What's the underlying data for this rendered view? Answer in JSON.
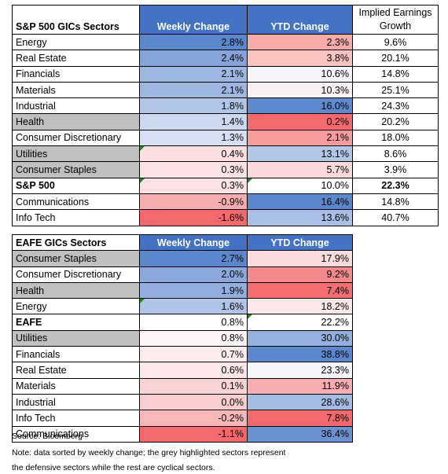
{
  "table1": {
    "headers": {
      "sector": "S&P 500 GICs Sectors",
      "weekly": "Weekly Change",
      "ytd": "YTD Change",
      "earnings_line1": "Implied Earnings",
      "earnings_line2": "Growth"
    },
    "rows": [
      {
        "sector": "Energy",
        "weekly": "2.8%",
        "ytd": "2.3%",
        "earnings": "9.6%",
        "weekly_color": "#5b87cd",
        "ytd_color": "#f8aaa9",
        "defensive": false,
        "bold": false,
        "flag_weekly": false,
        "flag_ytd": false
      },
      {
        "sector": "Real Estate",
        "weekly": "2.4%",
        "ytd": "3.8%",
        "earnings": "20.1%",
        "weekly_color": "#85a4da",
        "ytd_color": "#fbc2c2",
        "defensive": false,
        "bold": false,
        "flag_weekly": false,
        "flag_ytd": false
      },
      {
        "sector": "Financials",
        "weekly": "2.1%",
        "ytd": "10.6%",
        "earnings": "14.8%",
        "weekly_color": "#9db7e1",
        "ytd_color": "#f3f5fb",
        "defensive": false,
        "bold": false,
        "flag_weekly": false,
        "flag_ytd": false
      },
      {
        "sector": "Materials",
        "weekly": "2.1%",
        "ytd": "10.3%",
        "earnings": "25.1%",
        "weekly_color": "#9db7e1",
        "ytd_color": "#fbf1f3",
        "defensive": false,
        "bold": false,
        "flag_weekly": false,
        "flag_ytd": false
      },
      {
        "sector": "Industrial",
        "weekly": "1.8%",
        "ytd": "16.0%",
        "earnings": "24.3%",
        "weekly_color": "#b1c5e7",
        "ytd_color": "#5f89cf",
        "defensive": false,
        "bold": false,
        "flag_weekly": false,
        "flag_ytd": false
      },
      {
        "sector": "Health",
        "weekly": "1.4%",
        "ytd": "0.2%",
        "earnings": "20.2%",
        "weekly_color": "#cdd9f0",
        "ytd_color": "#f4696b",
        "defensive": true,
        "bold": false,
        "flag_weekly": false,
        "flag_ytd": false
      },
      {
        "sector": "Consumer Discretionary",
        "weekly": "1.3%",
        "ytd": "2.1%",
        "earnings": "18.0%",
        "weekly_color": "#d6e0f2",
        "ytd_color": "#f69c9d",
        "defensive": false,
        "bold": false,
        "flag_weekly": false,
        "flag_ytd": false
      },
      {
        "sector": "Utilities",
        "weekly": "0.4%",
        "ytd": "13.1%",
        "earnings": "8.6%",
        "weekly_color": "#fbdfe1",
        "ytd_color": "#b2c6e8",
        "defensive": true,
        "bold": false,
        "flag_weekly": true,
        "flag_ytd": false
      },
      {
        "sector": "Consumer Staples",
        "weekly": "0.3%",
        "ytd": "5.7%",
        "earnings": "3.9%",
        "weekly_color": "#fbe3e5",
        "ytd_color": "#fad9db",
        "defensive": true,
        "bold": false,
        "flag_weekly": false,
        "flag_ytd": false
      },
      {
        "sector": "S&P 500",
        "weekly": "0.3%",
        "ytd": "10.0%",
        "earnings": "22.3%",
        "weekly_color": "#fbe3e5",
        "ytd_color": "#ffffff",
        "defensive": false,
        "bold": true,
        "flag_weekly": true,
        "flag_ytd": true
      },
      {
        "sector": "Communications",
        "weekly": "-0.9%",
        "ytd": "16.4%",
        "earnings": "14.8%",
        "weekly_color": "#f8aeb0",
        "ytd_color": "#5b87cd",
        "defensive": false,
        "bold": false,
        "flag_weekly": false,
        "flag_ytd": false
      },
      {
        "sector": "Info Tech",
        "weekly": "-1.6%",
        "ytd": "13.6%",
        "earnings": "40.7%",
        "weekly_color": "#f4696b",
        "ytd_color": "#a9bfe5",
        "defensive": false,
        "bold": false,
        "flag_weekly": false,
        "flag_ytd": false
      }
    ]
  },
  "table2": {
    "headers": {
      "sector": "EAFE GICs Sectors",
      "weekly": "Weekly Change",
      "ytd": "YTD Change"
    },
    "rows": [
      {
        "sector": "Consumer Staples",
        "weekly": "2.7%",
        "ytd": "17.9%",
        "weekly_color": "#5b87cd",
        "ytd_color": "#fbdcde",
        "defensive": true,
        "bold": false,
        "flag_weekly": false,
        "flag_ytd": false
      },
      {
        "sector": "Consumer Discretionary",
        "weekly": "2.0%",
        "ytd": "9.2%",
        "weekly_color": "#8aa8dc",
        "ytd_color": "#f58a8b",
        "defensive": false,
        "bold": false,
        "flag_weekly": false,
        "flag_ytd": false
      },
      {
        "sector": "Health",
        "weekly": "1.9%",
        "ytd": "7.4%",
        "weekly_color": "#93afdf",
        "ytd_color": "#f46d6f",
        "defensive": true,
        "bold": false,
        "flag_weekly": false,
        "flag_ytd": false
      },
      {
        "sector": "Energy",
        "weekly": "1.6%",
        "ytd": "18.2%",
        "weekly_color": "#b0c4e7",
        "ytd_color": "#fce7e9",
        "defensive": false,
        "bold": false,
        "flag_weekly": true,
        "flag_ytd": false
      },
      {
        "sector": "EAFE",
        "weekly": "0.8%",
        "ytd": "22.2%",
        "weekly_color": "#ffffff",
        "ytd_color": "#ffffff",
        "defensive": false,
        "bold": true,
        "flag_weekly": false,
        "flag_ytd": true
      },
      {
        "sector": "Utilities",
        "weekly": "0.8%",
        "ytd": "30.0%",
        "weekly_color": "#fdf5f6",
        "ytd_color": "#94b0df",
        "defensive": true,
        "bold": false,
        "flag_weekly": false,
        "flag_ytd": false
      },
      {
        "sector": "Financials",
        "weekly": "0.7%",
        "ytd": "38.8%",
        "weekly_color": "#fcecee",
        "ytd_color": "#5b87cd",
        "defensive": false,
        "bold": false,
        "flag_weekly": false,
        "flag_ytd": false
      },
      {
        "sector": "Real Estate",
        "weekly": "0.6%",
        "ytd": "23.3%",
        "weekly_color": "#fbe6e8",
        "ytd_color": "#f3f5fb",
        "defensive": false,
        "bold": false,
        "flag_weekly": false,
        "flag_ytd": false
      },
      {
        "sector": "Materials",
        "weekly": "0.1%",
        "ytd": "11.9%",
        "weekly_color": "#fad3d5",
        "ytd_color": "#f8aeb0",
        "defensive": false,
        "bold": false,
        "flag_weekly": false,
        "flag_ytd": false
      },
      {
        "sector": "Industrial",
        "weekly": "0.0%",
        "ytd": "28.6%",
        "weekly_color": "#facdd0",
        "ytd_color": "#a4bce4",
        "defensive": false,
        "bold": false,
        "flag_weekly": false,
        "flag_ytd": false
      },
      {
        "sector": "Info Tech",
        "weekly": "-0.2%",
        "ytd": "7.8%",
        "weekly_color": "#f8b7b9",
        "ytd_color": "#f46a6c",
        "defensive": false,
        "bold": false,
        "flag_weekly": false,
        "flag_ytd": false
      },
      {
        "sector": "Communications",
        "weekly": "-1.1%",
        "ytd": "36.4%",
        "weekly_color": "#f4696b",
        "ytd_color": "#6a91d2",
        "defensive": false,
        "bold": false,
        "flag_weekly": false,
        "flag_ytd": false
      }
    ]
  },
  "notes": {
    "source": "Source: Bloomberg",
    "note_line1": "Note: data sorted by weekly change; the grey highlighted sectors represent",
    "note_line2": "the defensive sectors while the rest are cyclical sectors."
  },
  "colors": {
    "header_blue": "#4472c4",
    "defensive_grey": "#c0c0c0"
  }
}
